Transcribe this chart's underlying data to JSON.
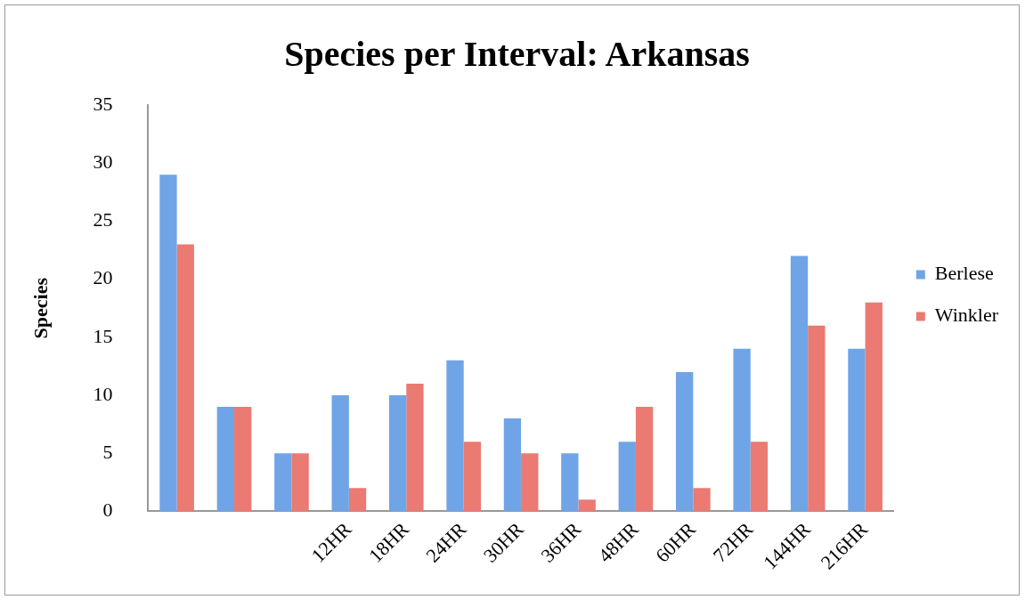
{
  "chart_data": {
    "type": "bar",
    "title": "Species per Interval: Arkansas",
    "ylabel": "Species",
    "categories": [
      null,
      null,
      null,
      "12HR",
      "18HR",
      "24HR",
      "30HR",
      "36HR",
      "48HR",
      "60HR",
      "72HR",
      "144HR",
      "216HR"
    ],
    "series": [
      {
        "name": "Berlese",
        "color": "#6fa5e6",
        "values": [
          29,
          9,
          5,
          10,
          10,
          13,
          8,
          5,
          6,
          12,
          14,
          22,
          14
        ]
      },
      {
        "name": "Winkler",
        "color": "#ea7a72",
        "values": [
          23,
          9,
          5,
          2,
          11,
          6,
          5,
          1,
          9,
          2,
          6,
          16,
          18
        ]
      }
    ],
    "ylim": [
      0,
      35
    ],
    "yticks": [
      0,
      5,
      10,
      15,
      20,
      25,
      30,
      35
    ],
    "grid": false,
    "legend": "right"
  }
}
